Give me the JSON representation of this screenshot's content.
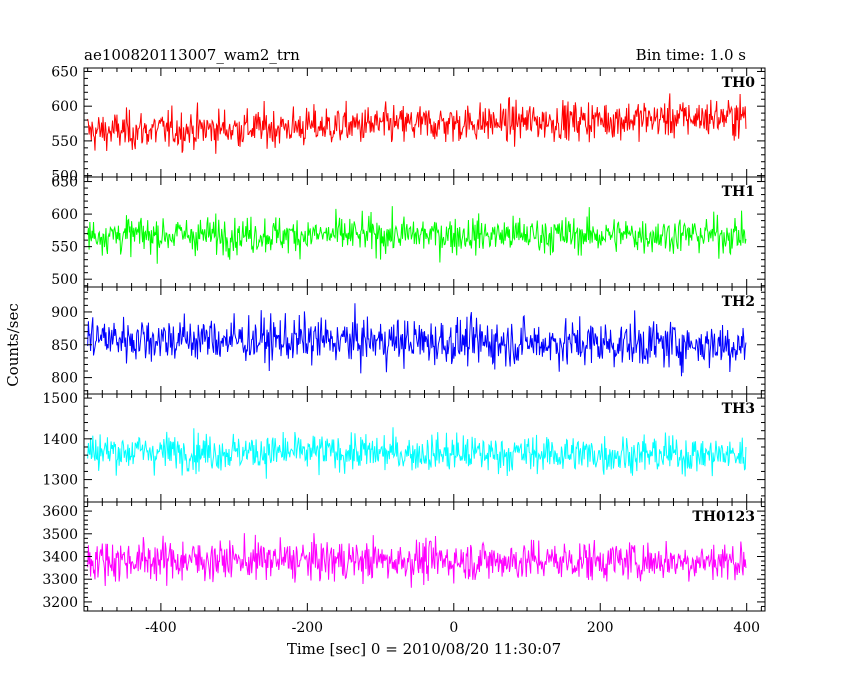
{
  "chart_data": {
    "type": "line",
    "title_left": "ae100820113007_wam2_trn",
    "title_right": "Bin time: 1.0 s",
    "xlabel": "Time [sec] 0 = 2010/08/20 11:30:07",
    "ylabel": "Counts/sec",
    "xlim": [
      -505,
      425
    ],
    "x_ticks": [
      -400,
      -200,
      0,
      200,
      400
    ],
    "x_range": [
      -500,
      399
    ],
    "grid": false,
    "panels": [
      {
        "name": "TH0",
        "color": "#ff0000",
        "ylim": [
          498,
          655
        ],
        "y_ticks": [
          500,
          550,
          600,
          650
        ],
        "mean_start": 563,
        "mean_end": 585,
        "noise": 22
      },
      {
        "name": "TH1",
        "color": "#00ff00",
        "ylim": [
          488,
          657
        ],
        "y_ticks": [
          500,
          550,
          600,
          650
        ],
        "mean_start": 568,
        "mean_end": 568,
        "noise": 22
      },
      {
        "name": "TH2",
        "color": "#0000ff",
        "ylim": [
          775,
          938
        ],
        "y_ticks": [
          800,
          850,
          900
        ],
        "mean_start": 860,
        "mean_end": 850,
        "noise": 28
      },
      {
        "name": "TH3",
        "color": "#00ffff",
        "ylim": [
          1245,
          1510
        ],
        "y_ticks": [
          1300,
          1400,
          1500
        ],
        "mean_start": 1370,
        "mean_end": 1360,
        "noise": 36
      },
      {
        "name": "TH0123",
        "color": "#ff00ff",
        "ylim": [
          3160,
          3640
        ],
        "y_ticks": [
          3200,
          3300,
          3400,
          3500,
          3600
        ],
        "mean_start": 3385,
        "mean_end": 3380,
        "noise": 70
      }
    ]
  }
}
